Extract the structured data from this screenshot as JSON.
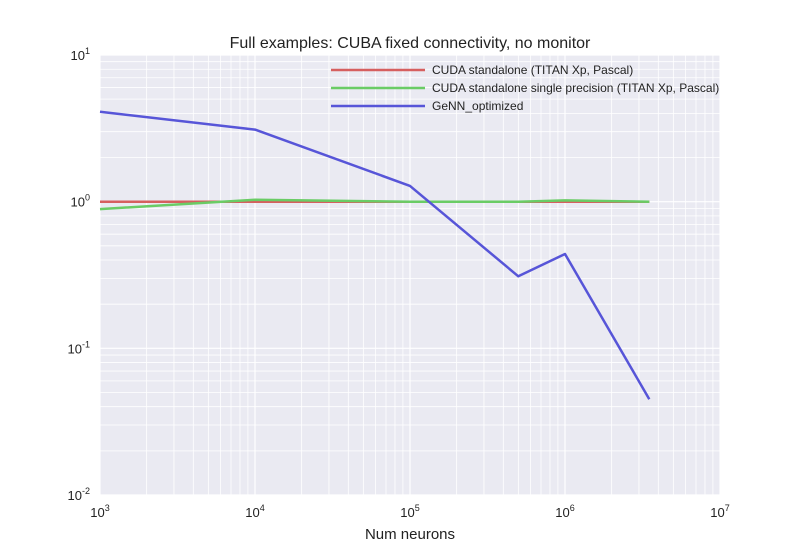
{
  "chart_data": {
    "type": "line",
    "title": "Full examples: CUBA fixed connectivity, no monitor",
    "xlabel": "Num neurons",
    "ylabel": "",
    "xscale": "log",
    "yscale": "log",
    "xlim": [
      1000,
      10000000
    ],
    "ylim": [
      0.01,
      10
    ],
    "grid": true,
    "legend_position": "top-right",
    "x_ticks": [
      {
        "base": "10",
        "exp": "3"
      },
      {
        "base": "10",
        "exp": "4"
      },
      {
        "base": "10",
        "exp": "5"
      },
      {
        "base": "10",
        "exp": "6"
      },
      {
        "base": "10",
        "exp": "7"
      }
    ],
    "y_ticks": [
      {
        "base": "10",
        "exp": "-2"
      },
      {
        "base": "10",
        "exp": "-1"
      },
      {
        "base": "10",
        "exp": "0"
      },
      {
        "base": "10",
        "exp": "1"
      }
    ],
    "series": [
      {
        "name": "CUDA standalone (TITAN Xp, Pascal)",
        "color": "#d65f5f",
        "x": [
          1000,
          10000,
          100000,
          500000,
          1000000,
          3500000
        ],
        "y": [
          1.0,
          1.0,
          1.0,
          1.0,
          1.0,
          1.0
        ]
      },
      {
        "name": "CUDA standalone single precision (TITAN Xp, Pascal)",
        "color": "#6acc65",
        "x": [
          1000,
          10000,
          100000,
          500000,
          1000000,
          3500000
        ],
        "y": [
          0.89,
          1.03,
          1.0,
          1.0,
          1.02,
          1.0
        ]
      },
      {
        "name": "GeNN_optimized",
        "color": "#5755d8",
        "x": [
          1000,
          10000,
          100000,
          500000,
          1000000,
          3500000
        ],
        "y": [
          4.1,
          3.1,
          1.28,
          0.31,
          0.44,
          0.045
        ]
      }
    ]
  }
}
